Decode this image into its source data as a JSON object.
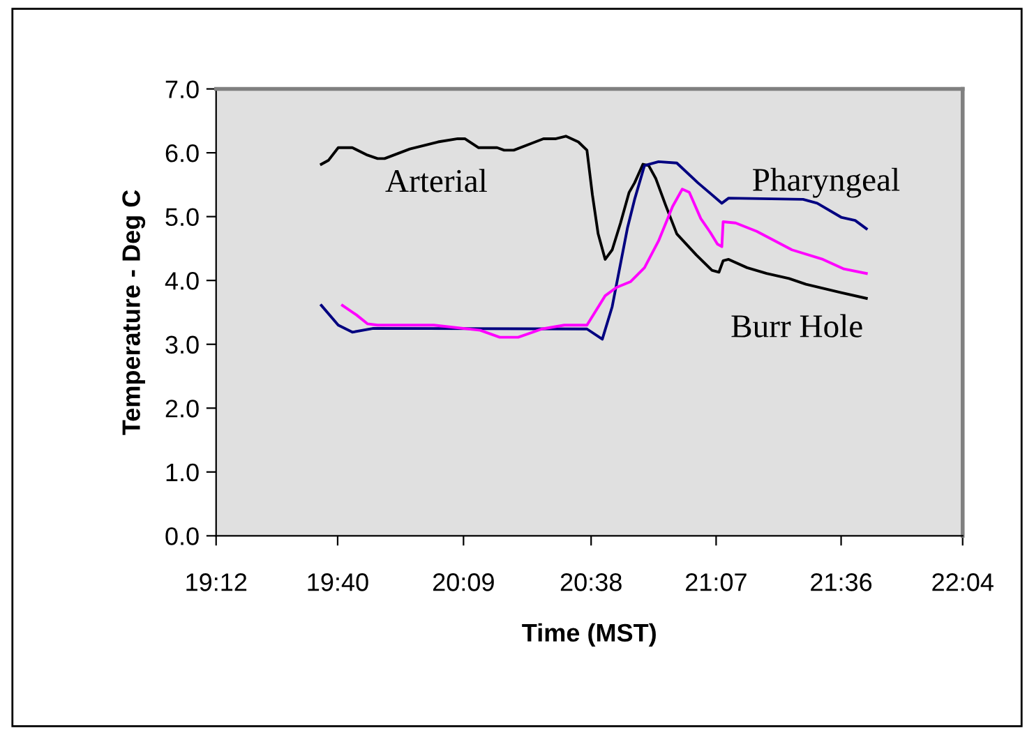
{
  "chart_data": {
    "type": "line",
    "xlabel": "Time (MST)",
    "ylabel": "Temperature - Deg C",
    "xlim": [
      19.2,
      22.0667
    ],
    "xticks": [
      {
        "value": 19.2,
        "label": "19:12"
      },
      {
        "value": 19.6667,
        "label": "19:40"
      },
      {
        "value": 20.15,
        "label": "20:09"
      },
      {
        "value": 20.64,
        "label": "20:38"
      },
      {
        "value": 21.12,
        "label": "21:07"
      },
      {
        "value": 21.6,
        "label": "21:36"
      },
      {
        "value": 22.0667,
        "label": "22:04"
      }
    ],
    "ylim": [
      0,
      7
    ],
    "yticks": [
      {
        "value": 0,
        "label": "0.0"
      },
      {
        "value": 1,
        "label": "1.0"
      },
      {
        "value": 2,
        "label": "2.0"
      },
      {
        "value": 3,
        "label": "3.0"
      },
      {
        "value": 4,
        "label": "4.0"
      },
      {
        "value": 5,
        "label": "5.0"
      },
      {
        "value": 6,
        "label": "6.0"
      },
      {
        "value": 7,
        "label": "7.0"
      }
    ],
    "grid": false,
    "legend": false,
    "marker": "none",
    "line_style": "solid",
    "series": [
      {
        "color": "#000000",
        "x": [
          19.604,
          19.631,
          19.669,
          19.723,
          19.777,
          19.82,
          19.847,
          19.944,
          20.052,
          20.128,
          20.155,
          20.208,
          20.279,
          20.306,
          20.343,
          20.457,
          20.505,
          20.543,
          20.591,
          20.624,
          20.645,
          20.667,
          20.694,
          20.721,
          20.753,
          20.786,
          20.807,
          20.839,
          20.861,
          20.888,
          20.926,
          20.969,
          21.044,
          21.104,
          21.131,
          21.147,
          21.168,
          21.239,
          21.314,
          21.4,
          21.465,
          21.6,
          21.697
        ],
        "values": [
          5.82,
          5.88,
          6.08,
          6.08,
          5.97,
          5.91,
          5.91,
          6.06,
          6.17,
          6.22,
          6.22,
          6.08,
          6.08,
          6.04,
          6.04,
          6.22,
          6.22,
          6.26,
          6.17,
          6.04,
          5.34,
          4.73,
          4.33,
          4.48,
          4.9,
          5.38,
          5.53,
          5.82,
          5.8,
          5.6,
          5.18,
          4.73,
          4.4,
          4.16,
          4.13,
          4.31,
          4.33,
          4.2,
          4.11,
          4.03,
          3.94,
          3.81,
          3.72
        ]
      },
      {
        "color": "#000080",
        "x": [
          19.604,
          19.669,
          19.723,
          19.804,
          20.624,
          20.683,
          20.721,
          20.78,
          20.807,
          20.845,
          20.899,
          20.969,
          21.05,
          21.142,
          21.168,
          21.454,
          21.508,
          21.6,
          21.654,
          21.697
        ],
        "values": [
          3.61,
          3.3,
          3.19,
          3.25,
          3.24,
          3.08,
          3.59,
          4.83,
          5.27,
          5.8,
          5.86,
          5.84,
          5.53,
          5.21,
          5.29,
          5.27,
          5.21,
          4.99,
          4.94,
          4.81
        ]
      },
      {
        "color": "#ff00ff",
        "x": [
          19.685,
          19.739,
          19.782,
          19.82,
          20.036,
          20.214,
          20.289,
          20.36,
          20.451,
          20.537,
          20.624,
          20.694,
          20.737,
          20.791,
          20.845,
          20.899,
          20.953,
          20.99,
          21.017,
          21.061,
          21.098,
          21.125,
          21.142,
          21.147,
          21.195,
          21.276,
          21.411,
          21.53,
          21.611,
          21.697
        ],
        "values": [
          3.61,
          3.46,
          3.32,
          3.3,
          3.3,
          3.22,
          3.11,
          3.11,
          3.24,
          3.3,
          3.3,
          3.76,
          3.89,
          3.98,
          4.2,
          4.62,
          5.16,
          5.43,
          5.38,
          4.97,
          4.75,
          4.57,
          4.53,
          4.92,
          4.9,
          4.77,
          4.48,
          4.33,
          4.18,
          4.11
        ]
      }
    ],
    "annotations": [
      "Arterial",
      "Pharyngeal",
      "Burr Hole"
    ]
  }
}
